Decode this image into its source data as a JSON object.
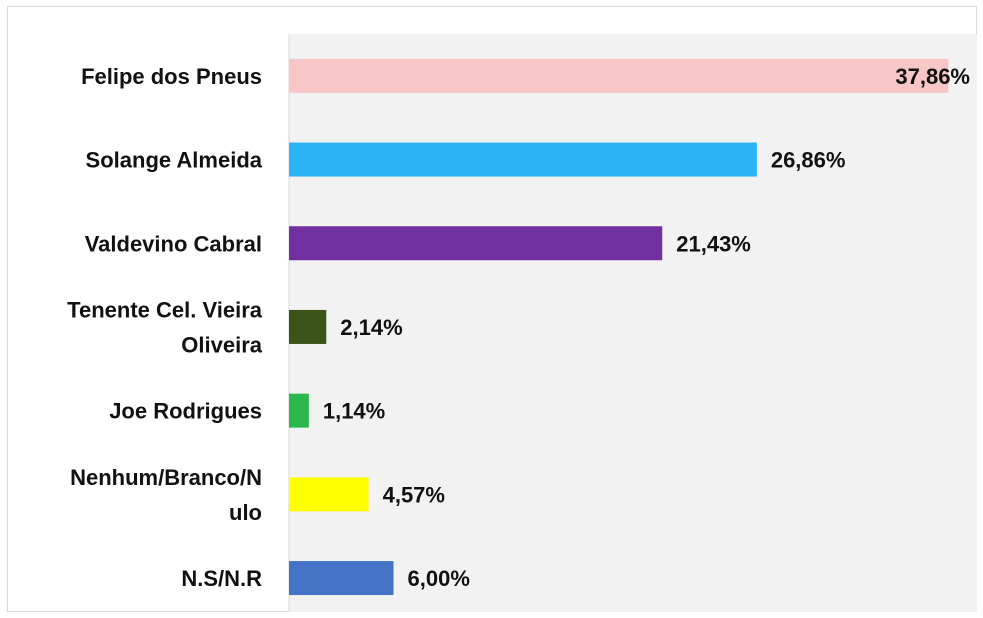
{
  "chart_data": {
    "type": "bar",
    "orientation": "horizontal",
    "categories": [
      [
        "Felipe dos Pneus"
      ],
      [
        "Solange Almeida"
      ],
      [
        "Valdevino Cabral"
      ],
      [
        "Tenente Cel. Vieira",
        "Oliveira"
      ],
      [
        "Joe Rodrigues"
      ],
      [
        "Nenhum/Branco/N",
        "ulo"
      ],
      [
        "N.S/N.R"
      ]
    ],
    "values": [
      37.86,
      26.86,
      21.43,
      2.14,
      1.14,
      4.57,
      6.0
    ],
    "value_labels": [
      "37,86%",
      "26,86%",
      "21,43%",
      "2,14%",
      "1,14%",
      "4,57%",
      "6,00%"
    ],
    "colors": [
      "#f8c6c6",
      "#2bb3f5",
      "#7030a0",
      "#3b5317",
      "#2db84d",
      "#ffff00",
      "#4472c4"
    ],
    "plot_background": "#f2f2f2",
    "xlim": [
      0,
      39.5
    ],
    "grid": false,
    "legend": "none"
  }
}
